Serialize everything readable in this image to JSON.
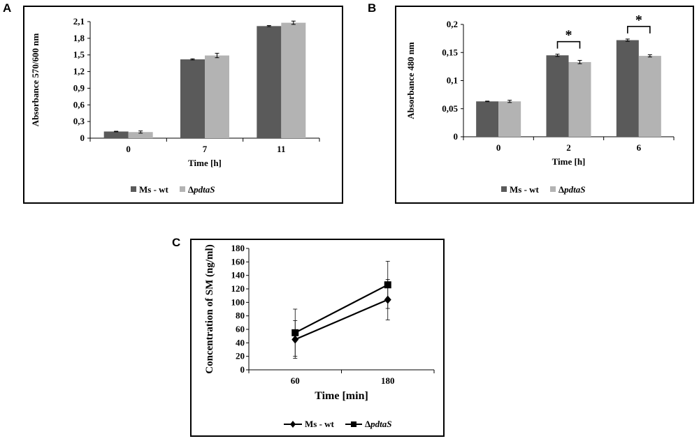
{
  "colors": {
    "wt": "#5a5a5a",
    "mutant": "#b3b3b3",
    "axis": "#000000"
  },
  "panels": {
    "a": "A",
    "b": "B",
    "c": "C"
  },
  "chart_data": [
    {
      "id": "A",
      "type": "bar",
      "title": "",
      "xlabel": "Time [h]",
      "ylabel": "Absorbance 570/600 nm",
      "ylim": [
        0,
        2.1
      ],
      "yticks": [
        0,
        0.3,
        0.6,
        0.9,
        1.2,
        1.5,
        1.8,
        2.1
      ],
      "ytick_labels": [
        "0",
        "0,3",
        "0,6",
        "0,9",
        "1,2",
        "1,5",
        "1,8",
        "2,1"
      ],
      "categories": [
        "0",
        "7",
        "11"
      ],
      "series": [
        {
          "name": "Ms - wt",
          "values": [
            0.12,
            1.42,
            2.02
          ],
          "errors": [
            0.005,
            0.01,
            0.01
          ]
        },
        {
          "name": "ΔpdtaS",
          "values": [
            0.11,
            1.49,
            2.08
          ],
          "errors": [
            0.02,
            0.04,
            0.03
          ]
        }
      ],
      "legend": [
        "Ms - wt",
        "ΔpdtaS"
      ],
      "significance": []
    },
    {
      "id": "B",
      "type": "bar",
      "title": "",
      "xlabel": "Time [h]",
      "ylabel": "Absorbance 480 nm",
      "ylim": [
        0,
        0.2
      ],
      "yticks": [
        0,
        0.05,
        0.1,
        0.15,
        0.2
      ],
      "ytick_labels": [
        "0",
        "0,05",
        "0,1",
        "0,15",
        "0,2"
      ],
      "categories": [
        "0",
        "2",
        "6"
      ],
      "series": [
        {
          "name": "Ms - wt",
          "values": [
            0.063,
            0.145,
            0.172
          ],
          "errors": [
            0.0005,
            0.002,
            0.002
          ]
        },
        {
          "name": "ΔpdtaS",
          "values": [
            0.063,
            0.133,
            0.144
          ],
          "errors": [
            0.002,
            0.003,
            0.002
          ]
        }
      ],
      "legend": [
        "Ms - wt",
        "ΔpdtaS"
      ],
      "significance": [
        {
          "category": "2",
          "label": "*"
        },
        {
          "category": "6",
          "label": "*"
        }
      ]
    },
    {
      "id": "C",
      "type": "line",
      "title": "",
      "xlabel": "Time [min]",
      "ylabel": "Concentration of SM (ng/ml)",
      "ylim": [
        0,
        180
      ],
      "yticks": [
        0,
        20,
        40,
        60,
        80,
        100,
        120,
        140,
        160,
        180
      ],
      "ytick_labels": [
        "0",
        "20",
        "40",
        "60",
        "80",
        "100",
        "120",
        "140",
        "160",
        "180"
      ],
      "categories": [
        "60",
        "180"
      ],
      "series": [
        {
          "name": "Ms - wt",
          "marker": "diamond",
          "values": [
            45,
            104
          ],
          "errors": [
            28,
            30
          ]
        },
        {
          "name": "ΔpdtaS",
          "marker": "square",
          "values": [
            55,
            126
          ],
          "errors": [
            35,
            35
          ]
        }
      ],
      "legend": [
        "Ms - wt",
        "ΔpdtaS"
      ]
    }
  ]
}
